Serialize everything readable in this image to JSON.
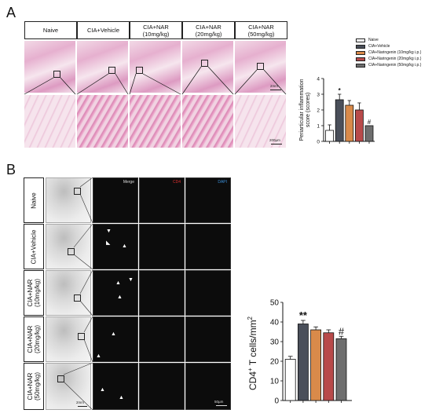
{
  "panel_a": {
    "letter": "A",
    "columns": [
      "Naive",
      "CIA+Vehicle",
      "CIA+NAR\n(10mg/kg)",
      "CIA+NAR\n(20mg/kg)",
      "CIA+NAR\n(50mg/kg)"
    ],
    "scale_low": "2mm",
    "scale_high": "200µm",
    "legend": [
      {
        "label": "Naive",
        "color": "#ffffff"
      },
      {
        "label": "CIA+Vehicle",
        "color": "#4a4f5a"
      },
      {
        "label": "CIA+Naringenin (10mg/kg i.p.)",
        "color": "#d98a4a"
      },
      {
        "label": "CIA+Naringenin (20mg/kg i.p.)",
        "color": "#b84a4a"
      },
      {
        "label": "CIA+Naringenin (50mg/kg i.p.)",
        "color": "#6e6e6e"
      }
    ]
  },
  "panel_b": {
    "letter": "B",
    "rows": [
      "Naive",
      "CIA+Vehicle",
      "CIA+NAR\n(10mg/kg)",
      "CIA+NAR\n(20mg/kg)",
      "CIA+NAR\n(50mg/kg)"
    ],
    "channel_headers": {
      "merge": "Merge",
      "cd4": "CD4",
      "dapi": "DAPI"
    },
    "channel_colors": {
      "merge": "#dddddd",
      "cd4": "#e03030",
      "dapi": "#3a8fd8"
    },
    "scale_ihc": "2mm",
    "scale_fl": "50µm"
  },
  "chart_data": [
    {
      "type": "bar",
      "ylabel": "Periarticular inflammation\nscore (scores)",
      "ylim": [
        0,
        4
      ],
      "yticks": [
        "0",
        "1",
        "2",
        "3",
        "4"
      ],
      "categories": [
        "Naive",
        "CIA+Vehicle",
        "CIA+Naringenin (10mg/kg i.p.)",
        "CIA+Naringenin (20mg/kg i.p.)",
        "CIA+Naringenin (50mg/kg i.p.)"
      ],
      "values": [
        0.7,
        2.65,
        2.3,
        2.0,
        1.0
      ],
      "errors": [
        0.35,
        0.35,
        0.3,
        0.45,
        0.0
      ],
      "colors": [
        "#ffffff",
        "#4a4f5a",
        "#d98a4a",
        "#b84a4a",
        "#6e6e6e"
      ],
      "annotations": [
        "",
        "*",
        "",
        "",
        "#"
      ]
    },
    {
      "type": "bar",
      "ylabel": "CD4",
      "ylabel_sup": "+",
      "ylabel_rest": " T cells/mm",
      "ylabel_sup2": "2",
      "ylim": [
        0,
        50
      ],
      "yticks": [
        "0",
        "10",
        "20",
        "30",
        "40",
        "50"
      ],
      "categories": [
        "Naive",
        "CIA+Vehicle",
        "CIA+NAR (10mg/kg)",
        "CIA+NAR (20mg/kg)",
        "CIA+NAR (50mg/kg)"
      ],
      "values": [
        21,
        39,
        36,
        34.5,
        31.5
      ],
      "errors": [
        1.5,
        1.8,
        1.5,
        1.5,
        1.2
      ],
      "colors": [
        "#ffffff",
        "#4a4f5a",
        "#d98a4a",
        "#b84a4a",
        "#6e6e6e"
      ],
      "annotations": [
        "",
        "**",
        "",
        "",
        "#"
      ]
    }
  ]
}
